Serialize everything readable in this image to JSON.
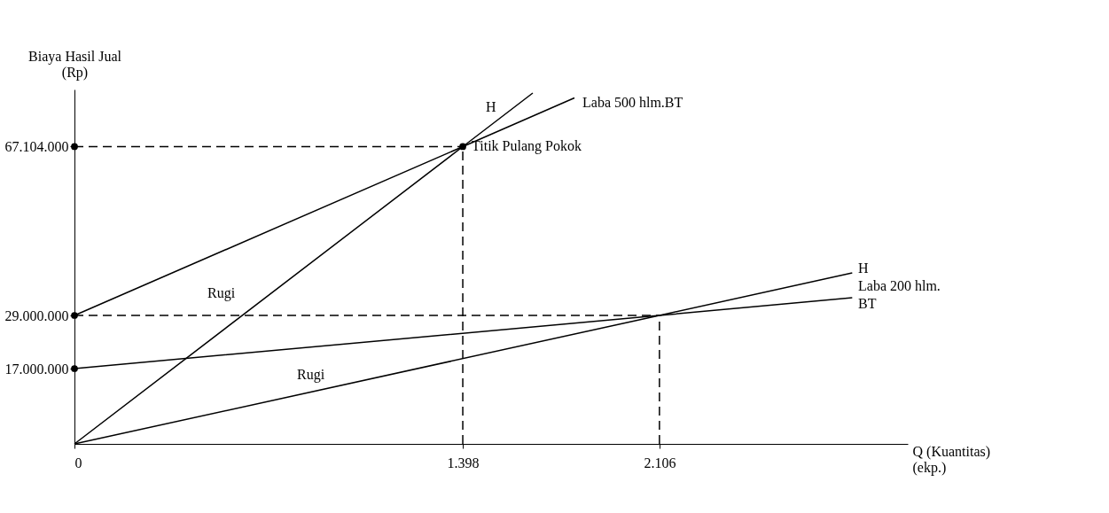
{
  "chart_data": {
    "type": "line",
    "xlabel": "Q (Kuantitas)\n(ekp.)",
    "ylabel": "Biaya Hasil Jual\n(Rp)",
    "xlim": [
      0,
      3000
    ],
    "ylim": [
      0,
      80000000
    ],
    "xticks": [
      0,
      {
        "value": 1398,
        "label": "1.398"
      },
      {
        "value": 2106,
        "label": "2.106"
      }
    ],
    "yticks": [
      {
        "value": 17000000,
        "label": "17.000.000"
      },
      {
        "value": 29000000,
        "label": "29.000.000"
      },
      {
        "value": 67104000,
        "label": "67.104.000"
      }
    ],
    "grid": false,
    "series": [
      {
        "color": "#000000",
        "line_style": "solid",
        "x": [
          0,
          1398,
          1650
        ],
        "values": [
          0,
          67104000,
          79200000
        ]
      },
      {
        "color": "#000000",
        "line_style": "solid",
        "x": [
          0,
          1398,
          1800
        ],
        "values": [
          29000000,
          67104000,
          78100000
        ]
      },
      {
        "color": "#000000",
        "line_style": "solid",
        "x": [
          0,
          2106,
          2800
        ],
        "values": [
          0,
          29000000,
          38600000
        ]
      },
      {
        "color": "#000000",
        "line_style": "solid",
        "x": [
          0,
          2106,
          2800
        ],
        "values": [
          17000000,
          29000000,
          33000000
        ]
      },
      {
        "color": "#000000",
        "line_style": "dashed",
        "x": [
          0,
          1398
        ],
        "values": [
          67104000,
          67104000
        ]
      },
      {
        "color": "#000000",
        "line_style": "dashed",
        "x": [
          1398,
          1398
        ],
        "values": [
          0,
          67104000
        ]
      },
      {
        "color": "#000000",
        "line_style": "dashed",
        "x": [
          0,
          2106
        ],
        "values": [
          29000000,
          29000000
        ]
      },
      {
        "color": "#000000",
        "line_style": "dashed",
        "x": [
          2106,
          2106
        ],
        "values": [
          0,
          29000000
        ]
      },
      {
        "type": "scatter",
        "color": "#000000",
        "marker": "circle",
        "x": [
          0,
          0,
          0,
          1398
        ],
        "values": [
          17000000,
          29000000,
          67104000,
          67104000
        ]
      }
    ],
    "annotations": [
      "H",
      "Laba 500 hlm.BT",
      {
        "text": "Titik Pulang Pokok",
        "x": 1398,
        "y": 67104000
      },
      "Rugi",
      "Rugi",
      "H",
      "Laba 200 hlm.",
      "BT"
    ]
  }
}
